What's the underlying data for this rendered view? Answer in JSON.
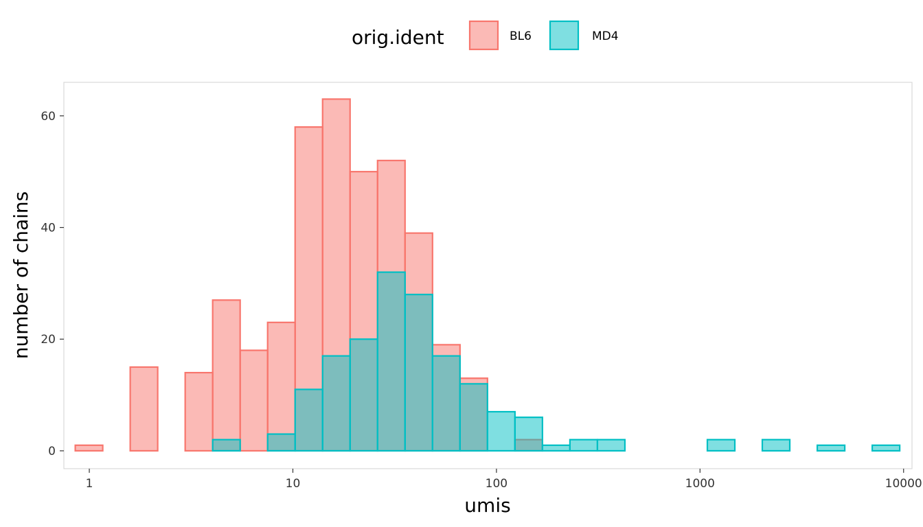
{
  "chart_data": {
    "type": "bar",
    "xlabel": "umis",
    "ylabel": "number of chains",
    "x_scale": "log10",
    "xlim": [
      0.75,
      11000
    ],
    "ylim": [
      -3.2,
      66
    ],
    "x_ticks": [
      1,
      10,
      100,
      1000,
      10000
    ],
    "x_tick_labels": [
      "1",
      "10",
      "100",
      "1000",
      "10000"
    ],
    "y_ticks": [
      0,
      20,
      40,
      60
    ],
    "y_tick_labels": [
      "0",
      "20",
      "40",
      "60"
    ],
    "grid": false,
    "legend": {
      "title": "orig.ident",
      "position": "top"
    },
    "bin_edges_log10": [
      -0.069,
      0.066,
      0.201,
      0.336,
      0.471,
      0.606,
      0.741,
      0.876,
      1.011,
      1.146,
      1.281,
      1.416,
      1.551,
      1.686,
      1.821,
      1.956,
      2.091,
      2.226,
      2.361,
      2.496,
      2.631,
      2.766,
      2.901,
      3.036,
      3.171,
      3.306,
      3.441,
      3.576,
      3.711,
      3.846,
      3.981
    ],
    "series": [
      {
        "name": "BL6",
        "fill": "#f8766d",
        "fill_opacity": 0.5,
        "stroke": "#f8766d",
        "values": [
          1,
          0,
          15,
          0,
          14,
          27,
          18,
          23,
          58,
          63,
          50,
          52,
          39,
          19,
          13,
          0,
          2,
          0,
          0,
          0,
          0,
          0,
          0,
          0,
          0,
          0,
          0,
          0,
          0,
          0
        ]
      },
      {
        "name": "MD4",
        "fill": "#00bfc4",
        "fill_opacity": 0.5,
        "stroke": "#00bfc4",
        "values": [
          0,
          0,
          0,
          0,
          0,
          2,
          0,
          3,
          11,
          17,
          20,
          32,
          28,
          17,
          12,
          7,
          6,
          1,
          2,
          2,
          0,
          0,
          0,
          2,
          0,
          2,
          0,
          1,
          0,
          1
        ]
      }
    ]
  }
}
